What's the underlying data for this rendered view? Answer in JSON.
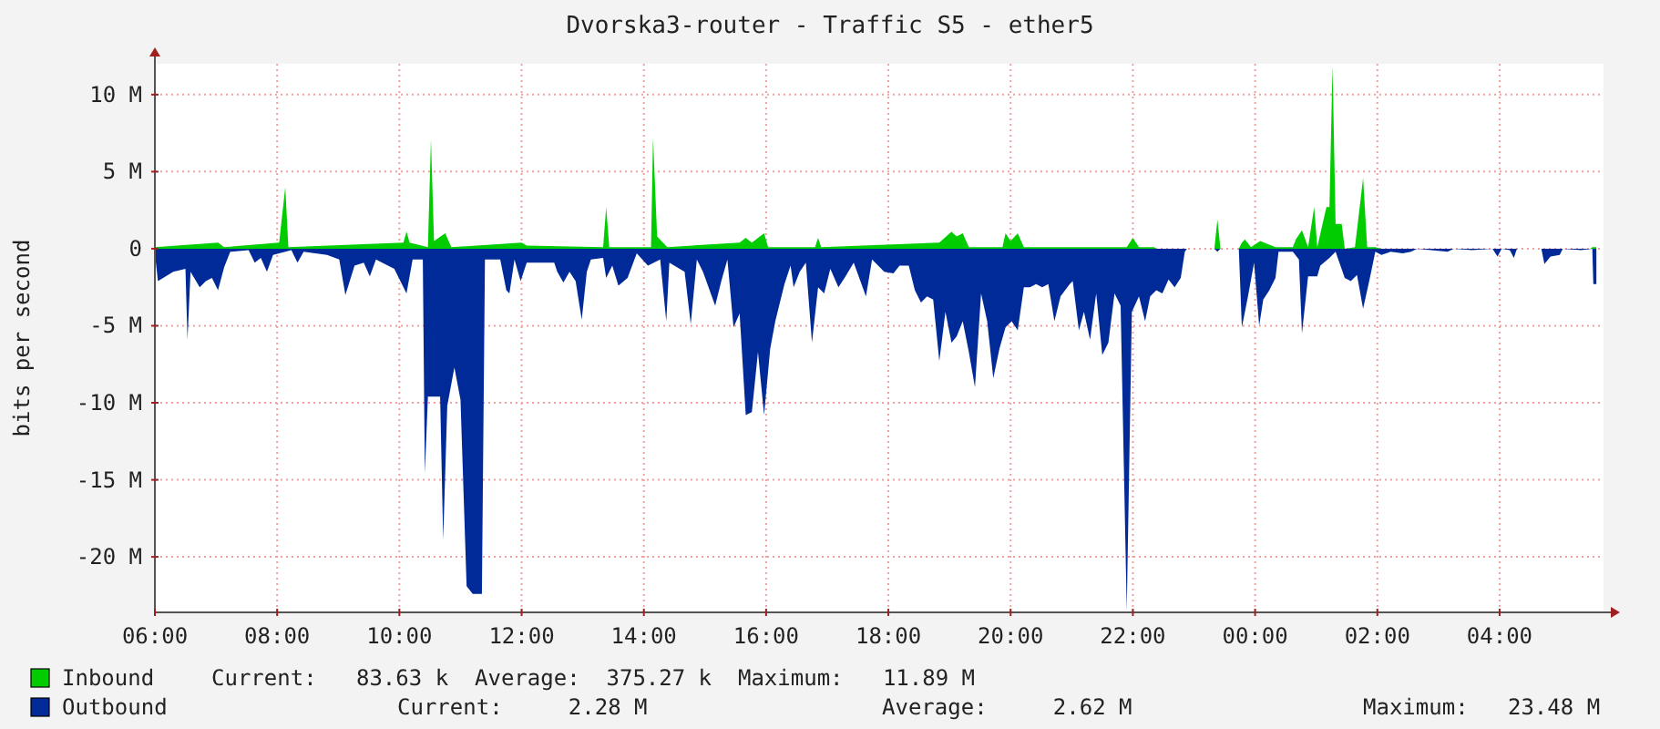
{
  "chart_data": {
    "type": "area",
    "title": "Dvorska3-router - Traffic S5 - ether5",
    "ylabel": "bits per second",
    "xlim": [
      "2000-01-01T06:00",
      "2000-01-02T05:42"
    ],
    "ylim": [
      -23.6,
      12
    ],
    "xticks": [
      {
        "value": "2000-01-01T06:00",
        "label": "06:00"
      },
      {
        "value": "2000-01-01T08:00",
        "label": "08:00"
      },
      {
        "value": "2000-01-01T10:00",
        "label": "10:00"
      },
      {
        "value": "2000-01-01T12:00",
        "label": "12:00"
      },
      {
        "value": "2000-01-01T14:00",
        "label": "14:00"
      },
      {
        "value": "2000-01-01T16:00",
        "label": "16:00"
      },
      {
        "value": "2000-01-01T18:00",
        "label": "18:00"
      },
      {
        "value": "2000-01-01T20:00",
        "label": "20:00"
      },
      {
        "value": "2000-01-01T22:00",
        "label": "22:00"
      },
      {
        "value": "2000-01-02T00:00",
        "label": "00:00"
      },
      {
        "value": "2000-01-02T02:00",
        "label": "02:00"
      },
      {
        "value": "2000-01-02T04:00",
        "label": "04:00"
      }
    ],
    "yticks": [
      {
        "value": -20,
        "label": "-20 M"
      },
      {
        "value": -15,
        "label": "-15 M"
      },
      {
        "value": -10,
        "label": "-10 M"
      },
      {
        "value": -5,
        "label": "-5 M"
      },
      0,
      {
        "value": 5,
        "label": "5 M"
      },
      {
        "value": 10,
        "label": "10 M"
      }
    ],
    "grid": true,
    "legend": "bottom",
    "annotations": [
      "Current:   83.63 k  Average:  375.27 k  Maximum:   11.89 M",
      "Current:     2.28 M",
      "Average:     2.62 M",
      "Maximum:   23.48 M"
    ],
    "series": [
      {
        "name": "Inbound",
        "color": "#00cc00",
        "x": [
          "2000-01-01T06:00",
          "2000-01-01T07:02",
          "2000-01-01T07:08",
          "2000-01-01T08:02",
          "2000-01-01T08:08",
          "2000-01-01T08:11",
          "2000-01-01T10:04",
          "2000-01-01T10:07",
          "2000-01-01T10:10",
          "2000-01-01T10:28",
          "2000-01-01T10:31",
          "2000-01-01T10:34",
          "2000-01-01T10:45",
          "2000-01-01T10:51",
          "2000-01-01T12:00",
          "2000-01-01T12:05",
          "2000-01-01T13:20",
          "2000-01-01T13:23",
          "2000-01-01T13:26",
          "2000-01-01T14:07",
          "2000-01-01T14:09",
          "2000-01-01T14:13",
          "2000-01-01T14:23",
          "2000-01-01T15:34",
          "2000-01-01T15:40",
          "2000-01-01T15:46",
          "2000-01-01T15:58",
          "2000-01-01T16:02",
          "2000-01-01T16:48",
          "2000-01-01T16:51",
          "2000-01-01T16:54",
          "2000-01-01T18:50",
          "2000-01-01T19:02",
          "2000-01-01T19:07",
          "2000-01-01T19:13",
          "2000-01-01T19:19",
          "2000-01-01T19:52",
          "2000-01-01T19:55",
          "2000-01-01T20:00",
          "2000-01-01T20:07",
          "2000-01-01T20:13",
          "2000-01-01T21:54",
          "2000-01-01T22:00",
          "2000-01-01T22:06",
          "2000-01-01T22:21",
          "2000-01-01T22:23",
          "2000-01-01T23:20",
          "2000-01-01T23:23",
          "2000-01-01T23:26",
          "2000-01-01T23:44",
          "2000-01-01T23:47",
          "2000-01-01T23:50",
          "2000-01-01T23:56",
          "2000-01-02T00:05",
          "2000-01-02T00:20",
          "2000-01-02T00:37",
          "2000-01-02T00:40",
          "2000-01-02T00:46",
          "2000-01-02T00:52",
          "2000-01-02T00:58",
          "2000-01-02T01:01",
          "2000-01-02T01:10",
          "2000-01-02T01:13",
          "2000-01-02T01:16",
          "2000-01-02T01:19",
          "2000-01-02T01:25",
          "2000-01-02T01:28",
          "2000-01-02T01:38",
          "2000-01-02T01:40",
          "2000-01-02T01:46",
          "2000-01-02T01:50",
          "2000-01-02T01:58",
          "2000-01-02T02:04",
          "2000-01-02T05:29",
          "2000-01-02T05:31",
          "2000-01-02T05:35"
        ],
        "values": [
          0.1,
          0.4,
          0.1,
          0.4,
          4.0,
          0.1,
          0.4,
          1.1,
          0.4,
          0.1,
          7.1,
          0.5,
          1.0,
          0.1,
          0.4,
          0.2,
          0.1,
          2.7,
          0.1,
          0.1,
          7.2,
          0.8,
          0.1,
          0.4,
          0.7,
          0.4,
          1.0,
          0.1,
          0.1,
          0.7,
          0.1,
          0.4,
          1.1,
          0.8,
          1.0,
          0.1,
          0.1,
          1.0,
          0.5,
          1.0,
          0.1,
          0.1,
          0.7,
          0.1,
          0.1,
          0,
          0,
          1.9,
          0,
          0,
          0.4,
          0.6,
          0.1,
          0.5,
          0.1,
          0.1,
          0.6,
          1.2,
          0.1,
          2.7,
          0.1,
          2.7,
          2.7,
          11.89,
          1.6,
          1.6,
          0,
          0.1,
          1.2,
          4.6,
          0.1,
          0.1,
          0,
          0,
          0.1,
          0.1
        ]
      },
      {
        "name": "Outbound",
        "color": "#002a97",
        "x": [
          "2000-01-01T06:00",
          "2000-01-01T06:03",
          "2000-01-01T06:18",
          "2000-01-01T06:30",
          "2000-01-01T06:32",
          "2000-01-01T06:35",
          "2000-01-01T06:44",
          "2000-01-01T06:50",
          "2000-01-01T06:56",
          "2000-01-01T07:02",
          "2000-01-01T07:08",
          "2000-01-01T07:14",
          "2000-01-01T07:32",
          "2000-01-01T07:38",
          "2000-01-01T07:44",
          "2000-01-01T07:50",
          "2000-01-01T07:56",
          "2000-01-01T08:14",
          "2000-01-01T08:20",
          "2000-01-01T08:26",
          "2000-01-01T08:49",
          "2000-01-01T09:01",
          "2000-01-01T09:07",
          "2000-01-01T09:16",
          "2000-01-01T09:25",
          "2000-01-01T09:31",
          "2000-01-01T09:37",
          "2000-01-01T09:55",
          "2000-01-01T10:07",
          "2000-01-01T10:13",
          "2000-01-01T10:23",
          "2000-01-01T10:25",
          "2000-01-01T10:28",
          "2000-01-01T10:40",
          "2000-01-01T10:43",
          "2000-01-01T10:47",
          "2000-01-01T10:54",
          "2000-01-01T11:00",
          "2000-01-01T11:06",
          "2000-01-01T11:12",
          "2000-01-01T11:21",
          "2000-01-01T11:24",
          "2000-01-01T11:39",
          "2000-01-01T11:45",
          "2000-01-01T11:48",
          "2000-01-01T11:53",
          "2000-01-01T11:59",
          "2000-01-01T12:05",
          "2000-01-01T12:32",
          "2000-01-01T12:35",
          "2000-01-01T12:41",
          "2000-01-01T12:47",
          "2000-01-01T12:53",
          "2000-01-01T12:59",
          "2000-01-01T13:04",
          "2000-01-01T13:08",
          "2000-01-01T13:20",
          "2000-01-01T13:23",
          "2000-01-01T13:29",
          "2000-01-01T13:35",
          "2000-01-01T13:44",
          "2000-01-01T13:53",
          "2000-01-01T14:04",
          "2000-01-01T14:16",
          "2000-01-01T14:22",
          "2000-01-01T14:25",
          "2000-01-01T14:40",
          "2000-01-01T14:46",
          "2000-01-01T14:52",
          "2000-01-01T14:58",
          "2000-01-01T15:10",
          "2000-01-01T15:16",
          "2000-01-01T15:22",
          "2000-01-01T15:28",
          "2000-01-01T15:34",
          "2000-01-01T15:40",
          "2000-01-01T15:46",
          "2000-01-01T15:52",
          "2000-01-01T15:58",
          "2000-01-01T16:04",
          "2000-01-01T16:09",
          "2000-01-01T16:18",
          "2000-01-01T16:24",
          "2000-01-01T16:27",
          "2000-01-01T16:33",
          "2000-01-01T16:39",
          "2000-01-01T16:45",
          "2000-01-01T16:51",
          "2000-01-01T16:57",
          "2000-01-01T17:03",
          "2000-01-01T17:11",
          "2000-01-01T17:17",
          "2000-01-01T17:26",
          "2000-01-01T17:38",
          "2000-01-01T17:44",
          "2000-01-01T17:56",
          "2000-01-01T18:05",
          "2000-01-01T18:11",
          "2000-01-01T18:20",
          "2000-01-01T18:26",
          "2000-01-01T18:32",
          "2000-01-01T18:38",
          "2000-01-01T18:44",
          "2000-01-01T18:50",
          "2000-01-01T18:56",
          "2000-01-01T19:02",
          "2000-01-01T19:07",
          "2000-01-01T19:13",
          "2000-01-01T19:19",
          "2000-01-01T19:25",
          "2000-01-01T19:31",
          "2000-01-01T19:37",
          "2000-01-01T19:43",
          "2000-01-01T19:49",
          "2000-01-01T19:55",
          "2000-01-01T20:01",
          "2000-01-01T20:07",
          "2000-01-01T20:13",
          "2000-01-01T20:19",
          "2000-01-01T20:25",
          "2000-01-01T20:31",
          "2000-01-01T20:37",
          "2000-01-01T20:43",
          "2000-01-01T20:49",
          "2000-01-01T20:58",
          "2000-01-01T21:01",
          "2000-01-01T21:07",
          "2000-01-01T21:12",
          "2000-01-01T21:18",
          "2000-01-01T21:24",
          "2000-01-01T21:30",
          "2000-01-01T21:36",
          "2000-01-01T21:42",
          "2000-01-01T21:48",
          "2000-01-01T21:54",
          "2000-01-01T21:59",
          "2000-01-01T22:06",
          "2000-01-01T22:12",
          "2000-01-01T22:17",
          "2000-01-01T22:23",
          "2000-01-01T22:29",
          "2000-01-01T22:35",
          "2000-01-01T22:41",
          "2000-01-01T22:47",
          "2000-01-01T22:51",
          "2000-01-01T22:53",
          "2000-01-01T23:20",
          "2000-01-01T23:23",
          "2000-01-01T23:26",
          "2000-01-01T23:44",
          "2000-01-01T23:47",
          "2000-01-01T23:53",
          "2000-01-01T23:59",
          "2000-01-02T00:04",
          "2000-01-02T00:08",
          "2000-01-02T00:14",
          "2000-01-02T00:20",
          "2000-01-02T00:23",
          "2000-01-02T00:37",
          "2000-01-02T00:43",
          "2000-01-02T00:46",
          "2000-01-02T00:52",
          "2000-01-02T01:01",
          "2000-01-02T01:04",
          "2000-01-02T01:13",
          "2000-01-02T01:19",
          "2000-01-02T01:28",
          "2000-01-02T01:34",
          "2000-01-02T01:40",
          "2000-01-02T01:46",
          "2000-01-02T01:52",
          "2000-01-02T01:58",
          "2000-01-02T02:04",
          "2000-01-02T02:13",
          "2000-01-02T02:25",
          "2000-01-02T02:33",
          "2000-01-02T02:39",
          "2000-01-02T03:09",
          "2000-01-02T03:15",
          "2000-01-02T03:33",
          "2000-01-02T03:53",
          "2000-01-02T03:58",
          "2000-01-02T04:02",
          "2000-01-02T04:10",
          "2000-01-02T04:14",
          "2000-01-02T04:17",
          "2000-01-02T04:41",
          "2000-01-02T04:44",
          "2000-01-02T04:50",
          "2000-01-02T04:59",
          "2000-01-02T05:02",
          "2000-01-02T05:20",
          "2000-01-02T05:31",
          "2000-01-02T05:32",
          "2000-01-02T05:35"
        ],
        "values": [
          -0.3,
          -2.1,
          -1.5,
          -1.3,
          -5.9,
          -1.5,
          -2.5,
          -2.1,
          -1.9,
          -2.7,
          -1.2,
          -0.2,
          -0.1,
          -0.9,
          -0.6,
          -1.5,
          -0.4,
          -0.1,
          -0.9,
          -0.2,
          -0.4,
          -0.7,
          -3.0,
          -1.1,
          -0.9,
          -1.8,
          -0.7,
          -1.3,
          -2.9,
          -0.7,
          -0.7,
          -14.6,
          -9.6,
          -9.6,
          -18.9,
          -10.2,
          -7.7,
          -9.8,
          -21.9,
          -22.4,
          -22.4,
          -0.7,
          -0.7,
          -2.7,
          -2.9,
          -0.7,
          -2.1,
          -0.9,
          -0.9,
          -1.5,
          -2.2,
          -1.5,
          -2.1,
          -4.6,
          -1.5,
          -0.7,
          -0.6,
          -1.9,
          -1.1,
          -2.4,
          -1.9,
          -0.3,
          -1.1,
          -0.7,
          -4.7,
          -0.9,
          -1.5,
          -4.9,
          -0.7,
          -1.5,
          -3.7,
          -2.1,
          -0.7,
          -5.1,
          -4.2,
          -10.8,
          -10.6,
          -6.7,
          -10.8,
          -6.5,
          -4.7,
          -2.3,
          -1.1,
          -2.5,
          -1.5,
          -0.9,
          -6.1,
          -2.5,
          -2.9,
          -1.3,
          -2.5,
          -1.9,
          -0.9,
          -3.1,
          -0.7,
          -1.5,
          -1.6,
          -1.1,
          -1.1,
          -2.7,
          -3.5,
          -3.1,
          -3.3,
          -7.3,
          -4.1,
          -6.1,
          -5.7,
          -4.7,
          -6.7,
          -9.0,
          -2.9,
          -4.7,
          -8.4,
          -6.5,
          -5.1,
          -4.7,
          -5.3,
          -2.5,
          -2.5,
          -2.3,
          -2.5,
          -2.3,
          -4.7,
          -3.1,
          -2.3,
          -2.1,
          -5.3,
          -4.1,
          -5.9,
          -2.9,
          -6.9,
          -6.1,
          -2.9,
          -3.7,
          -23.48,
          -4.1,
          -3.1,
          -4.7,
          -3.1,
          -2.7,
          -2.9,
          -2.0,
          -2.5,
          -1.9,
          -0.2,
          0,
          0,
          -0.2,
          0,
          0,
          -5.1,
          -3.1,
          -0.9,
          -5.0,
          -3.3,
          -2.7,
          -1.9,
          -0.2,
          -0.2,
          -0.7,
          -5.5,
          -1.8,
          -1.8,
          -1.1,
          -0.6,
          -0.2,
          -1.9,
          -2.1,
          -1.7,
          -3.9,
          -2.1,
          -0.2,
          -0.4,
          -0.2,
          -0.3,
          -0.2,
          0,
          -0.2,
          0,
          -0.1,
          0,
          -0.5,
          0,
          -0.1,
          -0.6,
          0,
          0,
          -1.0,
          -0.5,
          -0.4,
          0,
          -0.1,
          0,
          -2.3,
          -2.3
        ]
      }
    ]
  }
}
